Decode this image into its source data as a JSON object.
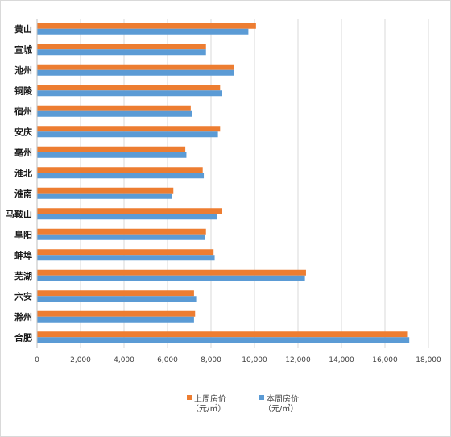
{
  "chart_data": {
    "type": "bar",
    "orientation": "horizontal",
    "categories": [
      "黄山",
      "宣城",
      "池州",
      "铜陵",
      "宿州",
      "安庆",
      "亳州",
      "淮北",
      "淮南",
      "马鞍山",
      "阜阳",
      "蚌埠",
      "芜湖",
      "六安",
      "滁州",
      "合肥"
    ],
    "series": [
      {
        "name_lines": [
          "上周房价",
          "（元/㎡）"
        ],
        "color": "#ed7d31",
        "values": [
          10050,
          7750,
          9050,
          8400,
          7050,
          8400,
          6800,
          7600,
          6250,
          8500,
          7750,
          8100,
          12350,
          7200,
          7250,
          17000
        ]
      },
      {
        "name_lines": [
          "本周房价",
          "（元/㎡）"
        ],
        "color": "#5b9bd5",
        "values": [
          9700,
          7750,
          9050,
          8500,
          7100,
          8300,
          6850,
          7650,
          6200,
          8250,
          7700,
          8150,
          12300,
          7300,
          7200,
          17100
        ]
      }
    ],
    "xticks": [
      "0",
      "2,000",
      "4,000",
      "6,000",
      "8,000",
      "10,000",
      "12,000",
      "14,000",
      "16,000",
      "18,000"
    ],
    "xlim": [
      0,
      18000
    ],
    "grid": true,
    "legend_position": "bottom"
  }
}
